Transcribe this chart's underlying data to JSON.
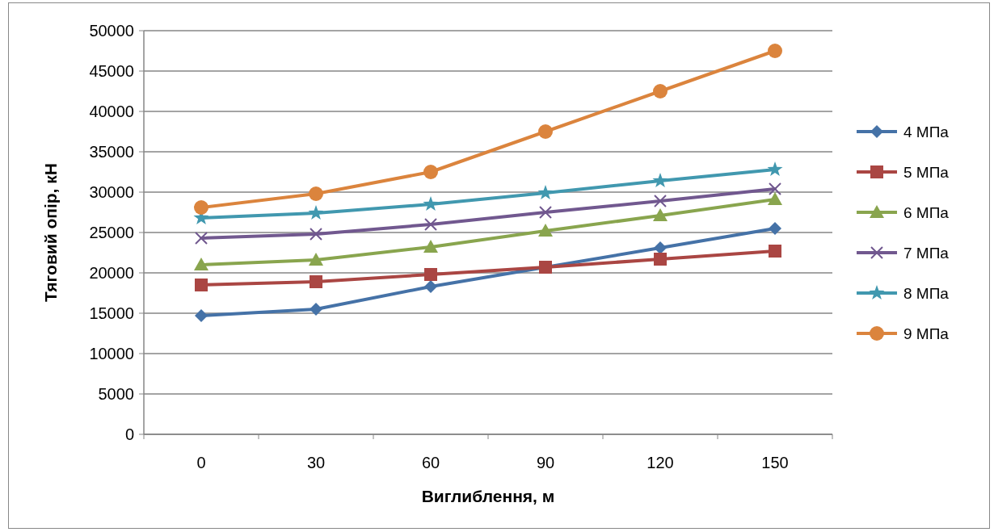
{
  "chart_data": {
    "type": "line",
    "xlabel": "Виглиблення, м",
    "ylabel": "Тяговий опір, кН",
    "categories": [
      "0",
      "30",
      "60",
      "90",
      "120",
      "150"
    ],
    "ylim": [
      0,
      50000
    ],
    "yticks": [
      0,
      5000,
      10000,
      15000,
      20000,
      25000,
      30000,
      35000,
      40000,
      45000,
      50000
    ],
    "grid": "y",
    "legend": "right",
    "line_style": "solid",
    "series": [
      {
        "name": "4 МПа",
        "color": "#4572a7",
        "marker": "diamond",
        "values": [
          14700,
          15500,
          18300,
          20700,
          23100,
          25500
        ]
      },
      {
        "name": "5 МПа",
        "color": "#aa4643",
        "marker": "square",
        "values": [
          18500,
          18900,
          19800,
          20700,
          21700,
          22700
        ]
      },
      {
        "name": "6 МПа",
        "color": "#89a54e",
        "marker": "triangle",
        "values": [
          21000,
          21600,
          23200,
          25200,
          27100,
          29100
        ]
      },
      {
        "name": "7 МПа",
        "color": "#71588f",
        "marker": "cross",
        "values": [
          24300,
          24800,
          26000,
          27500,
          28900,
          30400
        ]
      },
      {
        "name": "8 МПа",
        "color": "#4198af",
        "marker": "star",
        "values": [
          26800,
          27400,
          28500,
          29900,
          31400,
          32800
        ]
      },
      {
        "name": "9 МПа",
        "color": "#db843d",
        "marker": "circle",
        "values": [
          28100,
          29800,
          32500,
          37500,
          42500,
          47500
        ]
      }
    ]
  }
}
